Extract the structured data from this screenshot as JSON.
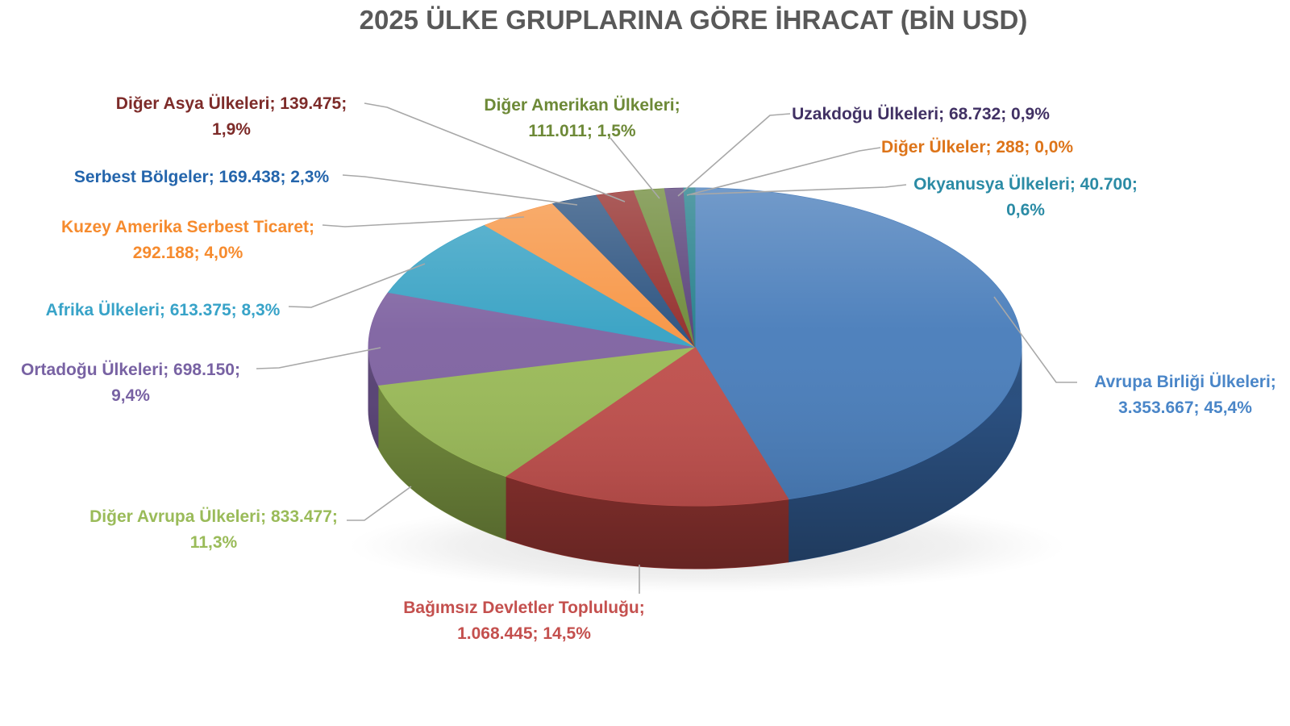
{
  "colors": {
    "title": "#595959",
    "leader_line": "#A8A8A8",
    "background": "#FFFFFF"
  },
  "chart_data": {
    "type": "pie",
    "effect": "3d",
    "title": "2025 ÜLKE GRUPLARINA GÖRE İHRACAT (BİN USD)",
    "unit": "BİN USD",
    "legend_position": "none",
    "label_format": "name; value; percent",
    "total_value": 7388946,
    "start_angle_deg": 0,
    "direction": "clockwise",
    "slices": [
      {
        "id": "avrupa-birligi",
        "name": "Avrupa Birliği Ülkeleri",
        "value": 3353667,
        "value_text": "3.353.667",
        "percent": 45.4,
        "percent_text": "45,4%",
        "color": "#4A7EBB",
        "side_color": "#2B5080",
        "label_color": "#4A86C8",
        "label_lines": [
          "Avrupa Birliği Ülkeleri;",
          "3.353.667; 45,4%"
        ]
      },
      {
        "id": "bagimsiz-devletler",
        "name": "Bağımsız Devletler Topluluğu",
        "value": 1068445,
        "value_text": "1.068.445",
        "percent": 14.5,
        "percent_text": "14,5%",
        "color": "#C0504D",
        "side_color": "#8E3330",
        "label_color": "#C4504E",
        "label_lines": [
          "Bağımsız Devletler Topluluğu;",
          "1.068.445; 14,5%"
        ]
      },
      {
        "id": "diger-avrupa",
        "name": "Diğer Avrupa Ülkeleri",
        "value": 833477,
        "value_text": "833.477",
        "percent": 11.3,
        "percent_text": "11,3%",
        "color": "#9BBB59",
        "side_color": "#71893C",
        "label_color": "#9ABB59",
        "label_lines": [
          "Diğer Avrupa Ülkeleri; 833.477;",
          "11,3%"
        ]
      },
      {
        "id": "ortadogu",
        "name": "Ortadoğu Ülkeleri",
        "value": 698150,
        "value_text": "698.150",
        "percent": 9.4,
        "percent_text": "9,4%",
        "color": "#8064A2",
        "side_color": "#5B4677",
        "label_color": "#7862A3",
        "label_lines": [
          "Ortadoğu Ülkeleri; 698.150;",
          "9,4%"
        ]
      },
      {
        "id": "afrika",
        "name": "Afrika Ülkeleri",
        "value": 613375,
        "value_text": "613.375",
        "percent": 8.3,
        "percent_text": "8,3%",
        "color": "#38A2C4",
        "side_color": "#2B7E99",
        "label_color": "#38A3C8",
        "label_lines": [
          "Afrika Ülkeleri; 613.375; 8,3%"
        ]
      },
      {
        "id": "kuzey-amerika",
        "name": "Kuzey Amerika Serbest Ticaret",
        "value": 292188,
        "value_text": "292.188",
        "percent": 4.0,
        "percent_text": "4,0%",
        "color": "#F79646",
        "side_color": "#C26F2B",
        "label_color": "#F68B2E",
        "label_lines": [
          "Kuzey Amerika Serbest Ticaret;",
          "292.188; 4,0%"
        ]
      },
      {
        "id": "serbest-bolgeler",
        "name": "Serbest Bölgeler",
        "value": 169438,
        "value_text": "169.438",
        "percent": 2.3,
        "percent_text": "2,3%",
        "color": "#2C5380",
        "side_color": "#1E3A5C",
        "label_color": "#2465AC",
        "label_lines": [
          "Serbest Bölgeler; 169.438; 2,3%"
        ]
      },
      {
        "id": "diger-asya",
        "name": "Diğer Asya Ülkeleri",
        "value": 139475,
        "value_text": "139.475",
        "percent": 1.9,
        "percent_text": "1,9%",
        "color": "#942F2D",
        "side_color": "#6E2321",
        "label_color": "#7D2B29",
        "label_lines": [
          "Diğer Asya Ülkeleri; 139.475;",
          "1,9%"
        ]
      },
      {
        "id": "diger-amerikan",
        "name": "Diğer Amerikan Ülkeleri",
        "value": 111011,
        "value_text": "111.011",
        "percent": 1.5,
        "percent_text": "1,5%",
        "color": "#6F8B3B",
        "side_color": "#53682C",
        "label_color": "#6D8937",
        "label_lines": [
          "Diğer Amerikan Ülkeleri;",
          "111.011; 1,5%"
        ]
      },
      {
        "id": "uzakdogu",
        "name": "Uzakdoğu Ülkeleri",
        "value": 68732,
        "value_text": "68.732",
        "percent": 0.9,
        "percent_text": "0,9%",
        "color": "#5A437A",
        "side_color": "#43325B",
        "label_color": "#413164",
        "label_lines": [
          "Uzakdoğu Ülkeleri; 68.732; 0,9%"
        ]
      },
      {
        "id": "diger-ulkeler",
        "name": "Diğer Ülkeler",
        "value": 288,
        "value_text": "288",
        "percent": 0.0,
        "percent_text": "0,0%",
        "color": "#D9792D",
        "side_color": "#A55A20",
        "label_color": "#DD7419",
        "label_lines": [
          "Diğer Ülkeler; 288; 0,0%"
        ]
      },
      {
        "id": "okyanusya",
        "name": "Okyanusya Ülkeleri",
        "value": 40700,
        "value_text": "40.700",
        "percent": 0.6,
        "percent_text": "0,6%",
        "color": "#26808C",
        "side_color": "#175F68",
        "label_color": "#2B8BA5",
        "label_lines": [
          "Okyanusya Ülkeleri; 40.700;",
          "0,6%"
        ]
      }
    ]
  }
}
